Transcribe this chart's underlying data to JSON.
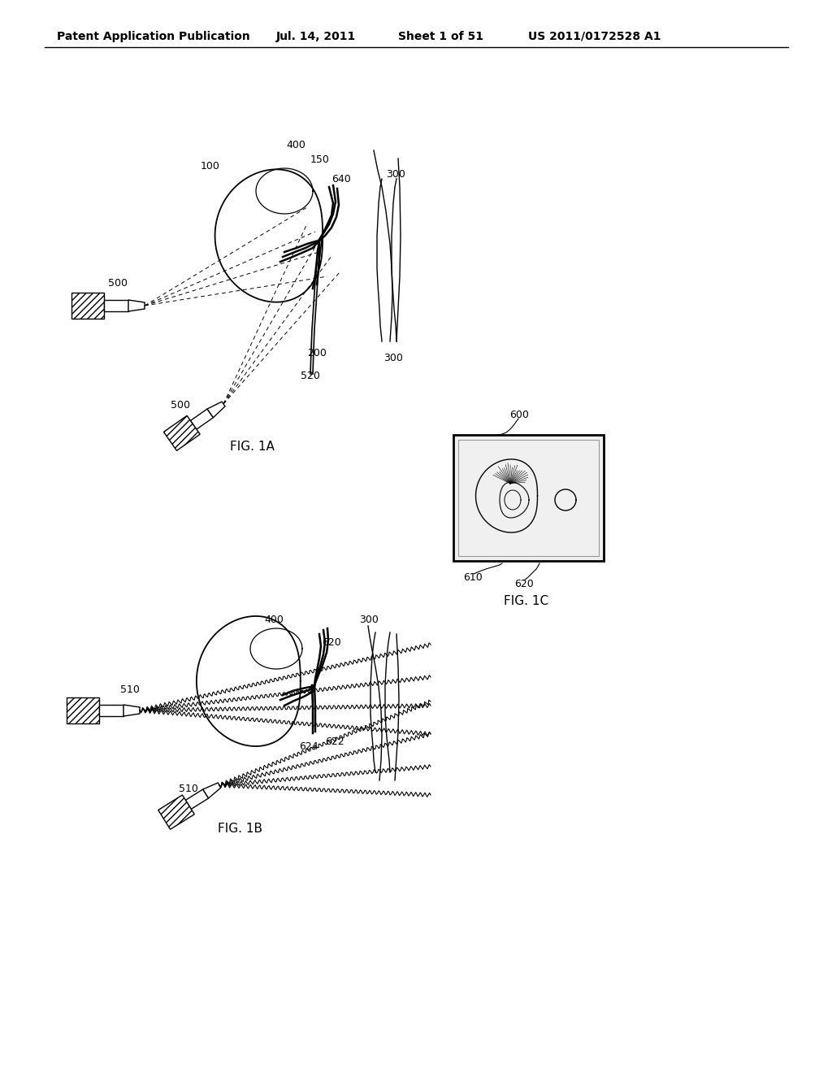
{
  "bg_color": "#ffffff",
  "header_text": "Patent Application Publication",
  "header_date": "Jul. 14, 2011",
  "header_sheet": "Sheet 1 of 51",
  "header_patent": "US 2011/0172528 A1",
  "fig1a_label": "FIG. 1A",
  "fig1b_label": "FIG. 1B",
  "fig1c_label": "FIG. 1C"
}
